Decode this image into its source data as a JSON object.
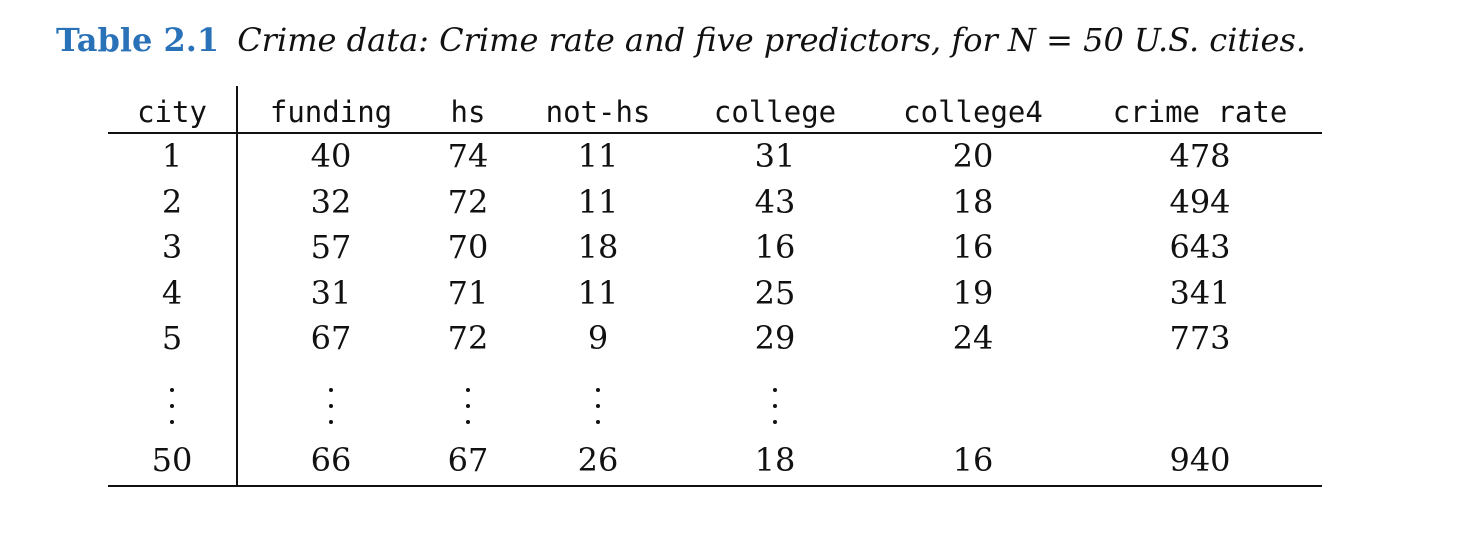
{
  "caption": {
    "label": "Table 2.1",
    "text": "Crime data: Crime rate and five predictors, for N = 50 U.S. cities."
  },
  "columns": [
    "city",
    "funding",
    "hs",
    "not-hs",
    "college",
    "college4",
    "crime rate"
  ],
  "rows": [
    [
      "1",
      "40",
      "74",
      "11",
      "31",
      "20",
      "478"
    ],
    [
      "2",
      "32",
      "72",
      "11",
      "43",
      "18",
      "494"
    ],
    [
      "3",
      "57",
      "70",
      "18",
      "16",
      "16",
      "643"
    ],
    [
      "4",
      "31",
      "71",
      "11",
      "25",
      "19",
      "341"
    ],
    [
      "5",
      "67",
      "72",
      "9",
      "29",
      "24",
      "773"
    ]
  ],
  "last_row": [
    "50",
    "66",
    "67",
    "26",
    "18",
    "16",
    "940"
  ],
  "ellipsis_columns": [
    "city",
    "funding",
    "hs",
    "not-hs",
    "college"
  ]
}
